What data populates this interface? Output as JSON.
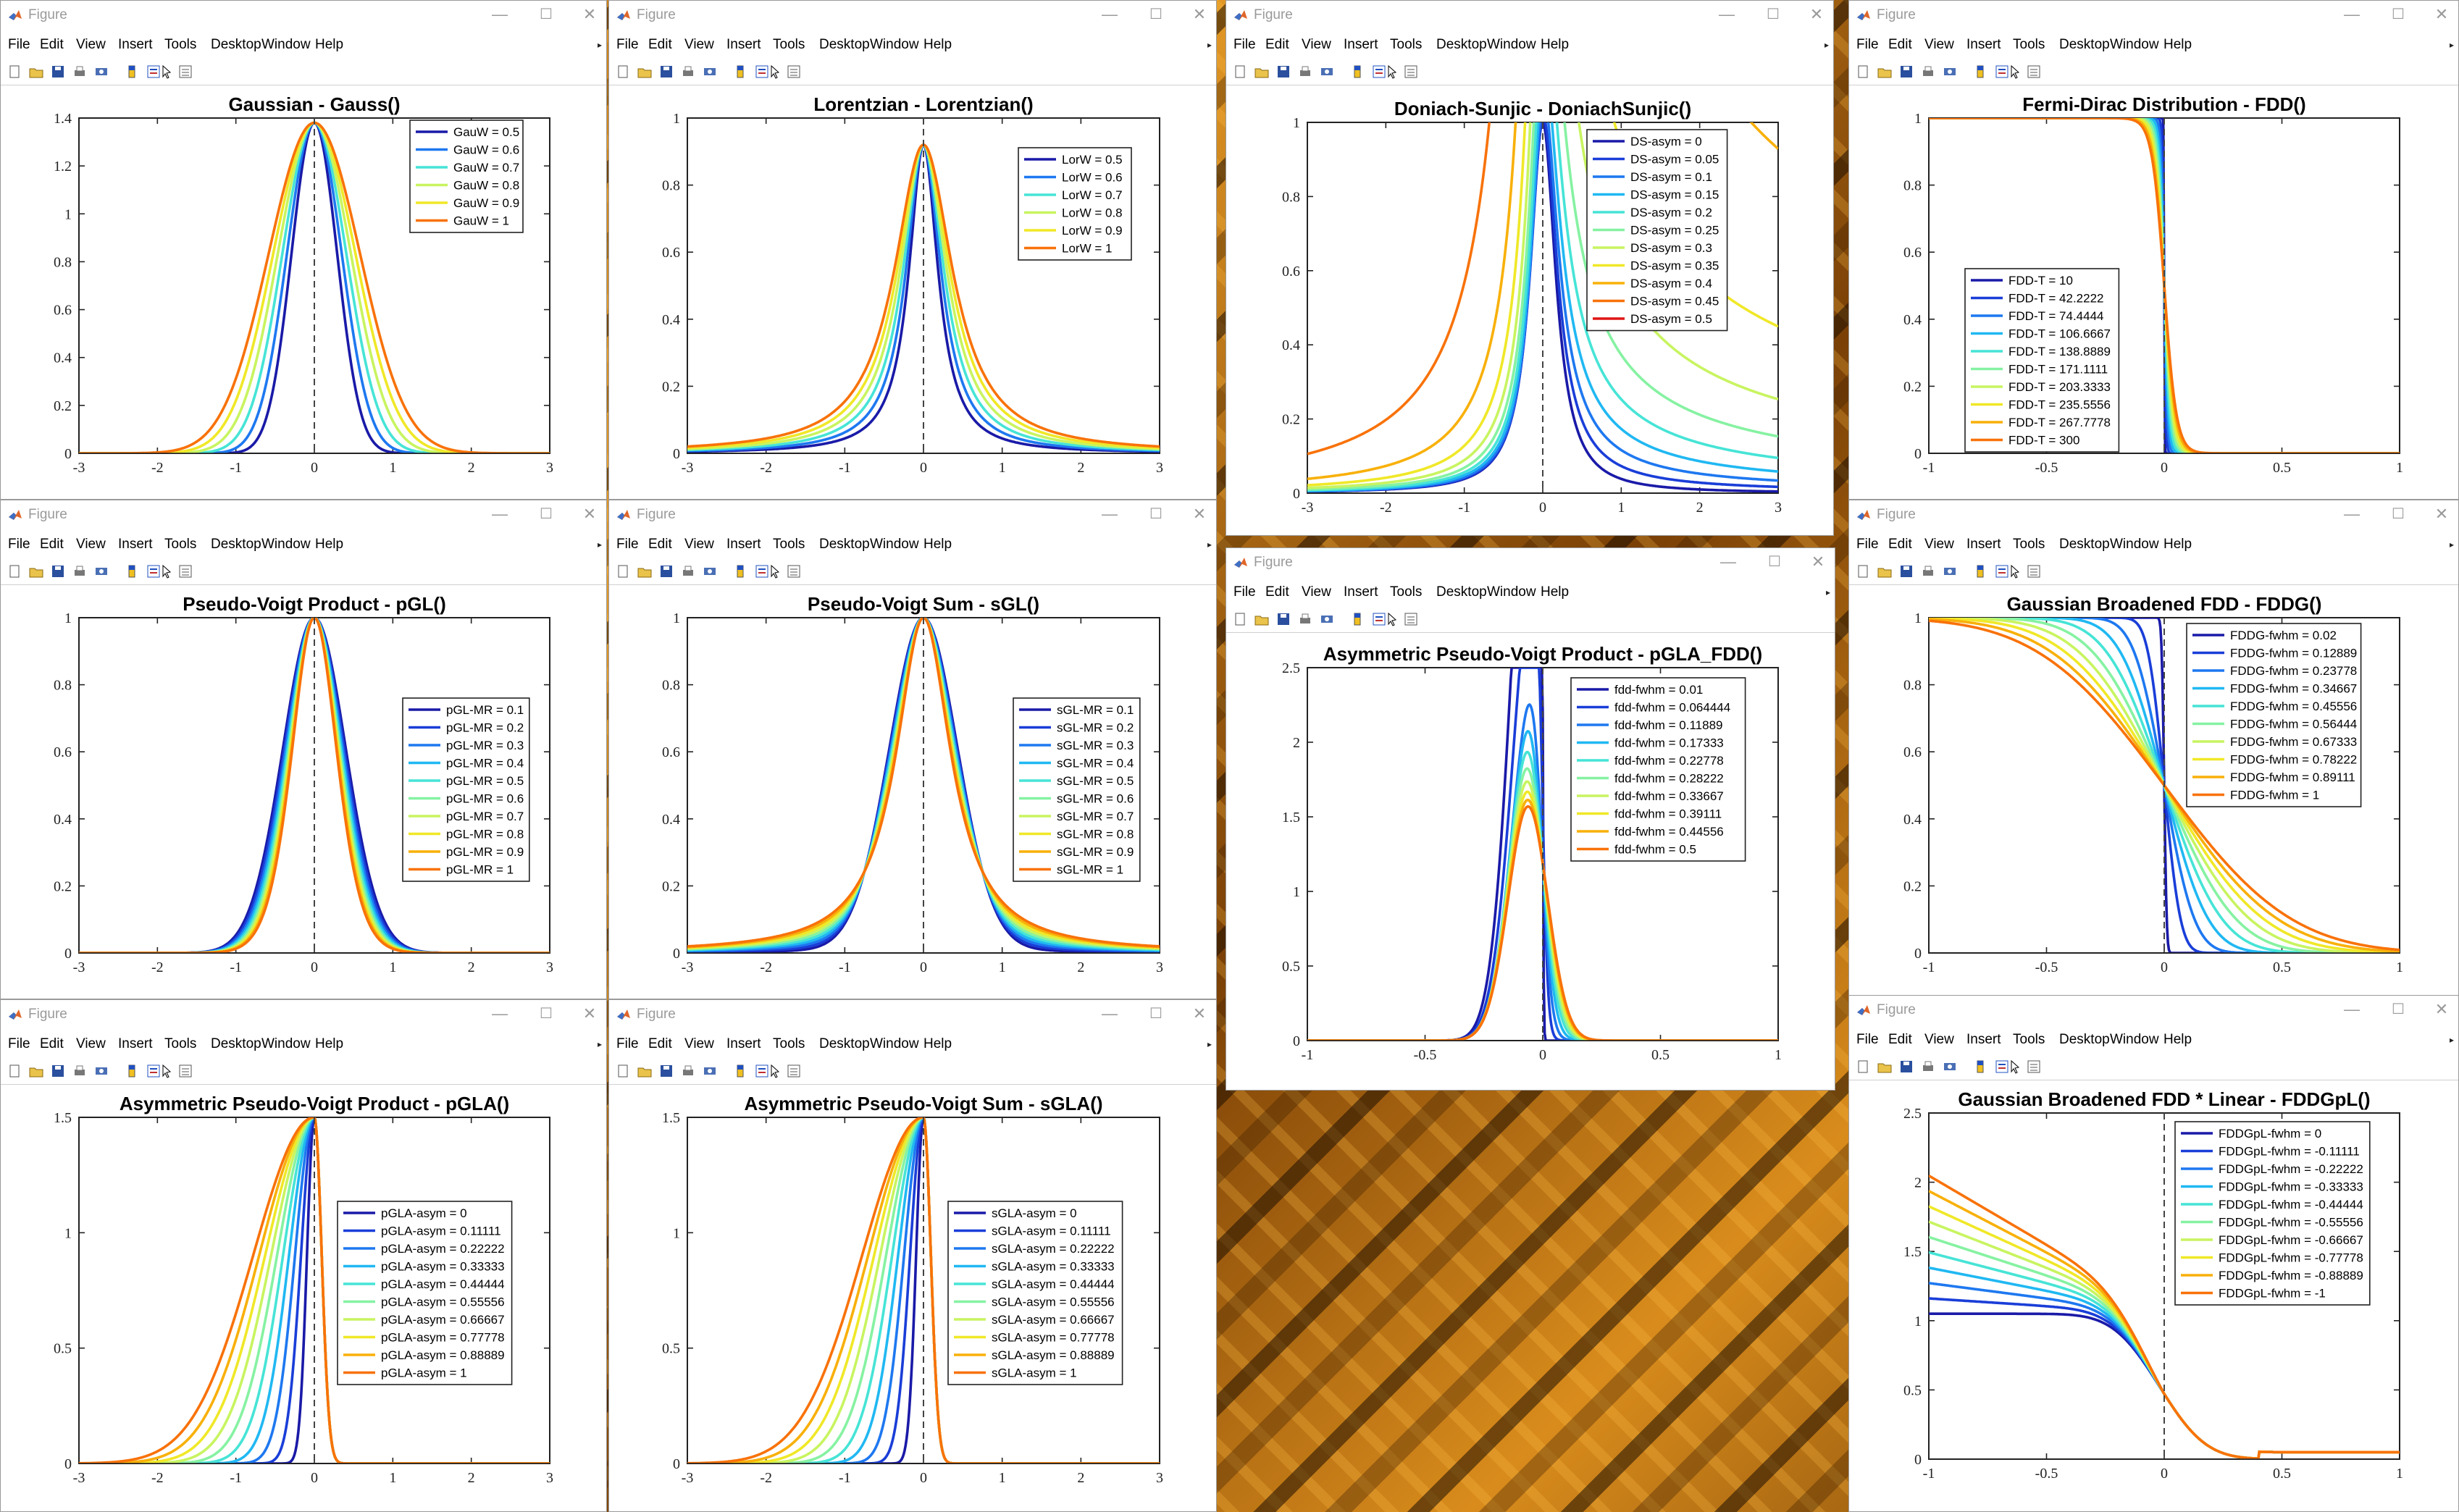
{
  "window": {
    "title": "Figure",
    "menu": [
      "File",
      "Edit",
      "View",
      "Insert",
      "Tools",
      "Desktop",
      "Window",
      "Help"
    ],
    "controls": {
      "minimize": "—",
      "maximize": "☐",
      "close": "✕"
    },
    "toolbar_icons": [
      "new-figure-icon",
      "open-file-icon",
      "save-icon",
      "print-icon",
      "print-preview-icon",
      "colorbar-icon",
      "legend-toggle-icon",
      "pointer-icon",
      "property-editor-icon"
    ]
  },
  "colors": {
    "palette10": [
      "#1a1aa8",
      "#1a3ed8",
      "#1e78f0",
      "#20b8f2",
      "#46e4d6",
      "#86f2a2",
      "#c8f460",
      "#f0e828",
      "#f8b00a",
      "#f8720a"
    ],
    "red": "#e01616",
    "desktop_orange": "#d98c1c"
  },
  "chart_data": [
    {
      "id": "gauss",
      "type": "line",
      "title": "Gaussian - Gauss()",
      "xlim": [
        -3,
        3
      ],
      "ylim": [
        0,
        1.4
      ],
      "xticks": [
        "-3",
        "-2",
        "-1",
        "0",
        "1",
        "2",
        "3"
      ],
      "yticks": [
        "0",
        "0.2",
        "0.4",
        "0.6",
        "0.8",
        "1",
        "1.2",
        "1.4"
      ],
      "legend": [
        "GauW = 0.5",
        "GauW = 0.6",
        "GauW = 0.7",
        "GauW = 0.8",
        "GauW = 0.9",
        "GauW = 1"
      ],
      "legend_loc": "top-right",
      "model": "gauss",
      "params": [
        0.5,
        0.6,
        0.7,
        0.8,
        0.9,
        1
      ]
    },
    {
      "id": "lor",
      "type": "line",
      "title": "Lorentzian - Lorentzian()",
      "xlim": [
        -3,
        3
      ],
      "ylim": [
        0,
        1
      ],
      "xticks": [
        "-3",
        "-2",
        "-1",
        "0",
        "1",
        "2",
        "3"
      ],
      "yticks": [
        "0",
        "0.2",
        "0.4",
        "0.6",
        "0.8",
        "1"
      ],
      "legend": [
        "LorW = 0.5",
        "LorW = 0.6",
        "LorW = 0.7",
        "LorW = 0.8",
        "LorW = 0.9",
        "LorW = 1"
      ],
      "legend_loc": "top-right",
      "model": "lor",
      "params": [
        0.5,
        0.6,
        0.7,
        0.8,
        0.9,
        1
      ]
    },
    {
      "id": "ds",
      "type": "line",
      "title": "Doniach-Sunjic - DoniachSunjic()",
      "xlim": [
        -3,
        3
      ],
      "ylim": [
        0,
        1
      ],
      "xticks": [
        "-3",
        "-2",
        "-1",
        "0",
        "1",
        "2",
        "3"
      ],
      "yticks": [
        "0",
        "0.2",
        "0.4",
        "0.6",
        "0.8",
        "1"
      ],
      "legend": [
        "DS-asym = 0",
        "DS-asym = 0.05",
        "DS-asym = 0.1",
        "DS-asym = 0.15",
        "DS-asym = 0.2",
        "DS-asym = 0.25",
        "DS-asym = 0.3",
        "DS-asym = 0.35",
        "DS-asym = 0.4",
        "DS-asym = 0.45",
        "DS-asym = 0.5"
      ],
      "legend_loc": "top-right",
      "model": "ds",
      "params": [
        0,
        0.05,
        0.1,
        0.15,
        0.2,
        0.25,
        0.3,
        0.35,
        0.4,
        0.45,
        0.5
      ]
    },
    {
      "id": "fdd",
      "type": "line",
      "title": "Fermi-Dirac Distribution - FDD()",
      "xlim": [
        -1,
        1
      ],
      "ylim": [
        0,
        1
      ],
      "xticks": [
        "-1",
        "-0.5",
        "0",
        "0.5",
        "1"
      ],
      "yticks": [
        "0",
        "0.2",
        "0.4",
        "0.6",
        "0.8",
        "1"
      ],
      "legend": [
        "FDD-T = 10",
        "FDD-T = 42.2222",
        "FDD-T = 74.4444",
        "FDD-T = 106.6667",
        "FDD-T = 138.8889",
        "FDD-T = 171.1111",
        "FDD-T = 203.3333",
        "FDD-T = 235.5556",
        "FDD-T = 267.7778",
        "FDD-T = 300"
      ],
      "legend_loc": "bottom-left",
      "model": "fdd",
      "params": [
        10,
        42.2222,
        74.4444,
        106.6667,
        138.8889,
        171.1111,
        203.3333,
        235.5556,
        267.7778,
        300
      ]
    },
    {
      "id": "pgl",
      "type": "line",
      "title": "Pseudo-Voigt Product - pGL()",
      "xlim": [
        -3,
        3
      ],
      "ylim": [
        0,
        1
      ],
      "xticks": [
        "-3",
        "-2",
        "-1",
        "0",
        "1",
        "2",
        "3"
      ],
      "yticks": [
        "0",
        "0.2",
        "0.4",
        "0.6",
        "0.8",
        "1"
      ],
      "legend": [
        "pGL-MR = 0.1",
        "pGL-MR = 0.2",
        "pGL-MR = 0.3",
        "pGL-MR = 0.4",
        "pGL-MR = 0.5",
        "pGL-MR = 0.6",
        "pGL-MR = 0.7",
        "pGL-MR = 0.8",
        "pGL-MR = 0.9",
        "pGL-MR = 1"
      ],
      "legend_loc": "right",
      "model": "pgl",
      "params": [
        0.1,
        0.2,
        0.3,
        0.4,
        0.5,
        0.6,
        0.7,
        0.8,
        0.9,
        1
      ]
    },
    {
      "id": "sgl",
      "type": "line",
      "title": "Pseudo-Voigt Sum - sGL()",
      "xlim": [
        -3,
        3
      ],
      "ylim": [
        0,
        1
      ],
      "xticks": [
        "-3",
        "-2",
        "-1",
        "0",
        "1",
        "2",
        "3"
      ],
      "yticks": [
        "0",
        "0.2",
        "0.4",
        "0.6",
        "0.8",
        "1"
      ],
      "legend": [
        "sGL-MR = 0.1",
        "sGL-MR = 0.2",
        "sGL-MR = 0.3",
        "sGL-MR = 0.4",
        "sGL-MR = 0.5",
        "sGL-MR = 0.6",
        "sGL-MR = 0.7",
        "sGL-MR = 0.8",
        "sGL-MR = 0.9",
        "sGL-MR = 1"
      ],
      "legend_loc": "right",
      "model": "sgl",
      "params": [
        0.1,
        0.2,
        0.3,
        0.4,
        0.5,
        0.6,
        0.7,
        0.8,
        0.9,
        1
      ]
    },
    {
      "id": "pglafdd",
      "type": "line",
      "title": "Asymmetric Pseudo-Voigt Product - pGLA_FDD()",
      "xlim": [
        -1,
        1
      ],
      "ylim": [
        0,
        2.5
      ],
      "xticks": [
        "-1",
        "-0.5",
        "0",
        "0.5",
        "1"
      ],
      "yticks": [
        "0",
        "0.5",
        "1",
        "1.5",
        "2",
        "2.5"
      ],
      "legend": [
        "fdd-fwhm = 0.01",
        "fdd-fwhm = 0.064444",
        "fdd-fwhm = 0.11889",
        "fdd-fwhm = 0.17333",
        "fdd-fwhm = 0.22778",
        "fdd-fwhm = 0.28222",
        "fdd-fwhm = 0.33667",
        "fdd-fwhm = 0.39111",
        "fdd-fwhm = 0.44556",
        "fdd-fwhm = 0.5"
      ],
      "legend_loc": "top-right",
      "model": "pglafdd",
      "params": [
        0.01,
        0.064444,
        0.11889,
        0.17333,
        0.22778,
        0.28222,
        0.33667,
        0.39111,
        0.44556,
        0.5
      ]
    },
    {
      "id": "fddg",
      "type": "line",
      "title": "Gaussian Broadened FDD - FDDG()",
      "xlim": [
        -1,
        1
      ],
      "ylim": [
        0,
        1
      ],
      "xticks": [
        "-1",
        "-0.5",
        "0",
        "0.5",
        "1"
      ],
      "yticks": [
        "0",
        "0.2",
        "0.4",
        "0.6",
        "0.8",
        "1"
      ],
      "legend": [
        "FDDG-fwhm = 0.02",
        "FDDG-fwhm = 0.12889",
        "FDDG-fwhm = 0.23778",
        "FDDG-fwhm = 0.34667",
        "FDDG-fwhm = 0.45556",
        "FDDG-fwhm = 0.56444",
        "FDDG-fwhm = 0.67333",
        "FDDG-fwhm = 0.78222",
        "FDDG-fwhm = 0.89111",
        "FDDG-fwhm = 1"
      ],
      "legend_loc": "top-right",
      "model": "fddg",
      "params": [
        0.02,
        0.12889,
        0.23778,
        0.34667,
        0.45556,
        0.56444,
        0.67333,
        0.78222,
        0.89111,
        1
      ]
    },
    {
      "id": "pgla",
      "type": "line",
      "title": "Asymmetric Pseudo-Voigt Product - pGLA()",
      "xlim": [
        -3,
        3
      ],
      "ylim": [
        0,
        1.5
      ],
      "xticks": [
        "-3",
        "-2",
        "-1",
        "0",
        "1",
        "2",
        "3"
      ],
      "yticks": [
        "0",
        "0.5",
        "1",
        "1.5"
      ],
      "legend": [
        "pGLA-asym = 0",
        "pGLA-asym = 0.11111",
        "pGLA-asym = 0.22222",
        "pGLA-asym = 0.33333",
        "pGLA-asym = 0.44444",
        "pGLA-asym = 0.55556",
        "pGLA-asym = 0.66667",
        "pGLA-asym = 0.77778",
        "pGLA-asym = 0.88889",
        "pGLA-asym = 1"
      ],
      "legend_loc": "right",
      "model": "asymp",
      "params": [
        0,
        0.11111,
        0.22222,
        0.33333,
        0.44444,
        0.55556,
        0.66667,
        0.77778,
        0.88889,
        1
      ]
    },
    {
      "id": "sgla",
      "type": "line",
      "title": "Asymmetric Pseudo-Voigt Sum - sGLA()",
      "xlim": [
        -3,
        3
      ],
      "ylim": [
        0,
        1.5
      ],
      "xticks": [
        "-3",
        "-2",
        "-1",
        "0",
        "1",
        "2",
        "3"
      ],
      "yticks": [
        "0",
        "0.5",
        "1",
        "1.5"
      ],
      "legend": [
        "sGLA-asym = 0",
        "sGLA-asym = 0.11111",
        "sGLA-asym = 0.22222",
        "sGLA-asym = 0.33333",
        "sGLA-asym = 0.44444",
        "sGLA-asym = 0.55556",
        "sGLA-asym = 0.66667",
        "sGLA-asym = 0.77778",
        "sGLA-asym = 0.88889",
        "sGLA-asym = 1"
      ],
      "legend_loc": "right",
      "model": "asymp",
      "params": [
        0,
        0.11111,
        0.22222,
        0.33333,
        0.44444,
        0.55556,
        0.66667,
        0.77778,
        0.88889,
        1
      ]
    },
    {
      "id": "fddgpl",
      "type": "line",
      "title": "Gaussian Broadened FDD * Linear - FDDGpL()",
      "xlim": [
        -1,
        1
      ],
      "ylim": [
        0,
        2.5
      ],
      "xticks": [
        "-1",
        "-0.5",
        "0",
        "0.5",
        "1"
      ],
      "yticks": [
        "0",
        "0.5",
        "1",
        "1.5",
        "2",
        "2.5"
      ],
      "legend": [
        "FDDGpL-fwhm = 0",
        "FDDGpL-fwhm = -0.11111",
        "FDDGpL-fwhm = -0.22222",
        "FDDGpL-fwhm = -0.33333",
        "FDDGpL-fwhm = -0.44444",
        "FDDGpL-fwhm = -0.55556",
        "FDDGpL-fwhm = -0.66667",
        "FDDGpL-fwhm = -0.77778",
        "FDDGpL-fwhm = -0.88889",
        "FDDGpL-fwhm = -1"
      ],
      "legend_loc": "top-right",
      "model": "fddgpl",
      "params": [
        0,
        -0.11111,
        -0.22222,
        -0.33333,
        -0.44444,
        -0.55556,
        -0.66667,
        -0.77778,
        -0.88889,
        -1
      ]
    }
  ]
}
